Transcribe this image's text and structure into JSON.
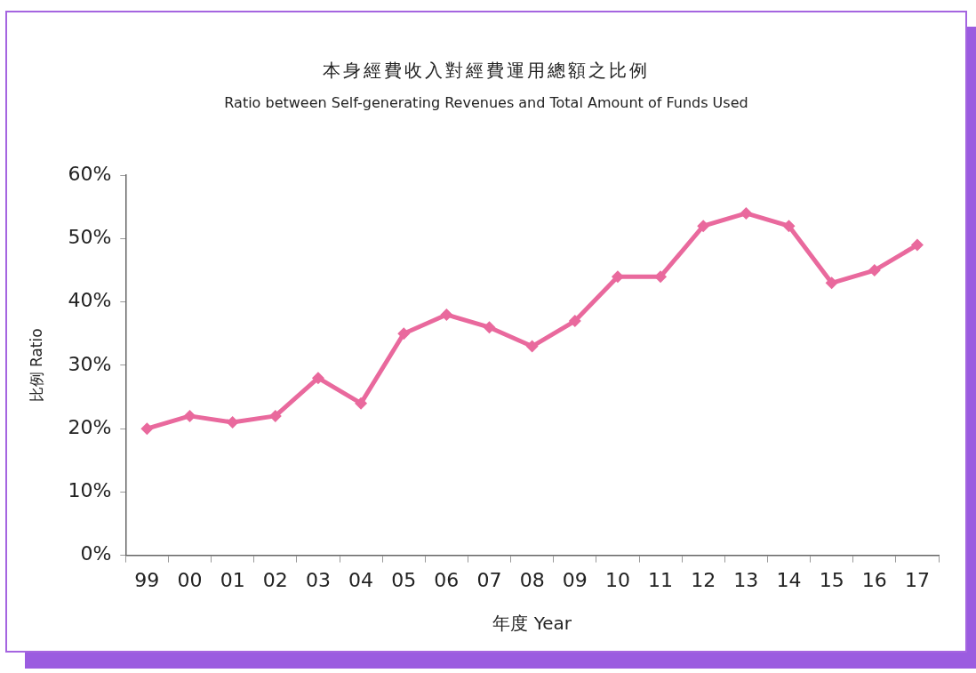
{
  "chart_data": {
    "type": "line",
    "title": "本身經費收入對經費運用總額之比例",
    "subtitle": "Ratio between Self-generating Revenues and Total Amount of Funds Used",
    "xlabel": "年度 Year",
    "ylabel": "比例 Ratio",
    "categories": [
      "99",
      "00",
      "01",
      "02",
      "03",
      "04",
      "05",
      "06",
      "07",
      "08",
      "09",
      "10",
      "11",
      "12",
      "13",
      "14",
      "15",
      "16",
      "17"
    ],
    "series": [
      {
        "color": "#e9699d",
        "values": [
          20,
          22,
          21,
          22,
          28,
          24,
          35,
          38,
          36,
          33,
          37,
          44,
          44,
          52,
          54,
          52,
          43,
          45,
          49
        ]
      }
    ],
    "ylim": [
      0,
      60
    ],
    "yticks": [
      {
        "value": 0,
        "label": "0%"
      },
      {
        "value": 10,
        "label": "10%"
      },
      {
        "value": 20,
        "label": "20%"
      },
      {
        "value": 30,
        "label": "30%"
      },
      {
        "value": 40,
        "label": "40%"
      },
      {
        "value": 50,
        "label": "50%"
      },
      {
        "value": 60,
        "label": "60%"
      }
    ],
    "grid": false,
    "legend": false,
    "marker": "diamond",
    "line_style": "solid"
  }
}
